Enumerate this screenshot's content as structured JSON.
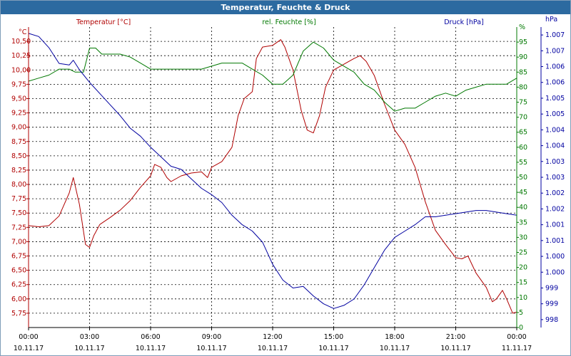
{
  "window": {
    "title": "Temperatur, Feuchte & Druck"
  },
  "colors": {
    "temp": "#b00000",
    "hum": "#007800",
    "press": "#0000a0",
    "grid": "#000000"
  },
  "chart_data": {
    "type": "line",
    "title": "Temperatur, Feuchte & Druck",
    "grid": true,
    "x_ticks": [
      {
        "time": "00:00",
        "date": "10.11.17"
      },
      {
        "time": "03:00",
        "date": "10.11.17"
      },
      {
        "time": "06:00",
        "date": "10.11.17"
      },
      {
        "time": "09:00",
        "date": "10.11.17"
      },
      {
        "time": "12:00",
        "date": "10.11.17"
      },
      {
        "time": "15:00",
        "date": "10.11.17"
      },
      {
        "time": "18:00",
        "date": "10.11.17"
      },
      {
        "time": "21:00",
        "date": "10.11.17"
      },
      {
        "time": "00:00",
        "date": "11.11.17"
      }
    ],
    "xlim_hours": [
      0,
      24
    ],
    "axes": {
      "temp": {
        "unit": "°C",
        "ylim": [
          5.5,
          10.75
        ],
        "ticks": [
          "5,75",
          "6,00",
          "6,25",
          "6,50",
          "6,75",
          "7,00",
          "7,25",
          "7,50",
          "7,75",
          "8,00",
          "8,25",
          "8,50",
          "8,75",
          "9,00",
          "9,25",
          "9,50",
          "9,75",
          "10,00",
          "10,25",
          "10,50"
        ]
      },
      "hum": {
        "unit": "%",
        "ylim": [
          0,
          100
        ],
        "ticks": [
          "0",
          "5",
          "10",
          "15",
          "20",
          "25",
          "30",
          "35",
          "40",
          "45",
          "50",
          "55",
          "60",
          "65",
          "70",
          "75",
          "80",
          "85",
          "90",
          "95",
          "%"
        ]
      },
      "press": {
        "unit": "hPa",
        "ylim": [
          997.75,
          1007.25
        ],
        "ticks": [
          "998",
          "999",
          "999",
          "1.000",
          "1.000",
          "1.001",
          "1.001",
          "1.002",
          "1.002",
          "1.003",
          "1.003",
          "1.004",
          "1.004",
          "1.005",
          "1.005",
          "1.006",
          "1.006",
          "1.007",
          "1.007",
          "hPa"
        ]
      }
    },
    "series": [
      {
        "name": "Temperatur [°C]",
        "axis": "temp",
        "points": [
          [
            0,
            7.28
          ],
          [
            0.5,
            7.26
          ],
          [
            1,
            7.28
          ],
          [
            1.5,
            7.45
          ],
          [
            2,
            7.85
          ],
          [
            2.2,
            8.12
          ],
          [
            2.5,
            7.65
          ],
          [
            2.8,
            6.95
          ],
          [
            3,
            6.9
          ],
          [
            3.2,
            7.1
          ],
          [
            3.5,
            7.3
          ],
          [
            4,
            7.42
          ],
          [
            4.5,
            7.55
          ],
          [
            5,
            7.72
          ],
          [
            5.5,
            7.95
          ],
          [
            6,
            8.15
          ],
          [
            6.2,
            8.35
          ],
          [
            6.5,
            8.3
          ],
          [
            6.8,
            8.12
          ],
          [
            7,
            8.05
          ],
          [
            7.5,
            8.15
          ],
          [
            8,
            8.2
          ],
          [
            8.5,
            8.22
          ],
          [
            8.8,
            8.12
          ],
          [
            9,
            8.3
          ],
          [
            9.5,
            8.4
          ],
          [
            10,
            8.65
          ],
          [
            10.3,
            9.2
          ],
          [
            10.6,
            9.5
          ],
          [
            11,
            9.62
          ],
          [
            11.2,
            10.2
          ],
          [
            11.5,
            10.4
          ],
          [
            12,
            10.43
          ],
          [
            12.4,
            10.53
          ],
          [
            12.6,
            10.4
          ],
          [
            13,
            10.0
          ],
          [
            13.4,
            9.3
          ],
          [
            13.7,
            8.95
          ],
          [
            14,
            8.9
          ],
          [
            14.3,
            9.2
          ],
          [
            14.6,
            9.7
          ],
          [
            15,
            10.0
          ],
          [
            15.5,
            10.1
          ],
          [
            16,
            10.2
          ],
          [
            16.3,
            10.25
          ],
          [
            16.6,
            10.15
          ],
          [
            17,
            9.9
          ],
          [
            17.5,
            9.4
          ],
          [
            18,
            8.95
          ],
          [
            18.5,
            8.7
          ],
          [
            19,
            8.3
          ],
          [
            19.5,
            7.7
          ],
          [
            20,
            7.2
          ],
          [
            20.5,
            6.95
          ],
          [
            21,
            6.72
          ],
          [
            21.3,
            6.7
          ],
          [
            21.6,
            6.75
          ],
          [
            22,
            6.45
          ],
          [
            22.5,
            6.2
          ],
          [
            22.8,
            5.95
          ],
          [
            23,
            6.0
          ],
          [
            23.3,
            6.15
          ],
          [
            23.5,
            6.0
          ],
          [
            23.8,
            5.75
          ],
          [
            24,
            5.77
          ]
        ]
      },
      {
        "name": "rel. Feuchte [%]",
        "axis": "hum",
        "points": [
          [
            0,
            82
          ],
          [
            0.5,
            83
          ],
          [
            1,
            84
          ],
          [
            1.5,
            86
          ],
          [
            2,
            86
          ],
          [
            2.3,
            85
          ],
          [
            2.7,
            85
          ],
          [
            3,
            93
          ],
          [
            3.3,
            93
          ],
          [
            3.6,
            91
          ],
          [
            4,
            91
          ],
          [
            4.5,
            91
          ],
          [
            5,
            90
          ],
          [
            5.5,
            88
          ],
          [
            6,
            86
          ],
          [
            6.5,
            86
          ],
          [
            7,
            86
          ],
          [
            7.5,
            86
          ],
          [
            8,
            86
          ],
          [
            8.5,
            86
          ],
          [
            9,
            87
          ],
          [
            9.5,
            88
          ],
          [
            10,
            88
          ],
          [
            10.5,
            88
          ],
          [
            11,
            86
          ],
          [
            11.5,
            84
          ],
          [
            12,
            81
          ],
          [
            12.5,
            81
          ],
          [
            13,
            84
          ],
          [
            13.5,
            92
          ],
          [
            14,
            95
          ],
          [
            14.5,
            93
          ],
          [
            15,
            89
          ],
          [
            15.5,
            87
          ],
          [
            16,
            85
          ],
          [
            16.5,
            81
          ],
          [
            17,
            79
          ],
          [
            17.5,
            75
          ],
          [
            18,
            72
          ],
          [
            18.5,
            73
          ],
          [
            19,
            73
          ],
          [
            19.5,
            75
          ],
          [
            20,
            77
          ],
          [
            20.5,
            78
          ],
          [
            21,
            77
          ],
          [
            21.5,
            79
          ],
          [
            22,
            80
          ],
          [
            22.5,
            81
          ],
          [
            23,
            81
          ],
          [
            23.5,
            81
          ],
          [
            24,
            83
          ]
        ]
      },
      {
        "name": "Druck [hPa]",
        "axis": "press",
        "points": [
          [
            0,
            1007.05
          ],
          [
            0.5,
            1006.95
          ],
          [
            1,
            1006.6
          ],
          [
            1.5,
            1006.1
          ],
          [
            2,
            1006.05
          ],
          [
            2.2,
            1006.2
          ],
          [
            2.5,
            1005.9
          ],
          [
            3,
            1005.5
          ],
          [
            3.5,
            1005.15
          ],
          [
            4,
            1004.8
          ],
          [
            4.5,
            1004.45
          ],
          [
            5,
            1004.05
          ],
          [
            5.5,
            1003.8
          ],
          [
            6,
            1003.45
          ],
          [
            6.5,
            1003.15
          ],
          [
            7,
            1002.85
          ],
          [
            7.5,
            1002.75
          ],
          [
            8,
            1002.45
          ],
          [
            8.5,
            1002.15
          ],
          [
            9,
            1001.95
          ],
          [
            9.5,
            1001.7
          ],
          [
            10,
            1001.3
          ],
          [
            10.5,
            1001.0
          ],
          [
            11,
            1000.8
          ],
          [
            11.5,
            1000.45
          ],
          [
            12,
            999.75
          ],
          [
            12.5,
            999.25
          ],
          [
            13,
            999.0
          ],
          [
            13.5,
            999.05
          ],
          [
            14,
            998.75
          ],
          [
            14.5,
            998.5
          ],
          [
            15,
            998.35
          ],
          [
            15.5,
            998.45
          ],
          [
            16,
            998.65
          ],
          [
            16.5,
            999.1
          ],
          [
            17,
            999.65
          ],
          [
            17.5,
            1000.2
          ],
          [
            18,
            1000.6
          ],
          [
            18.5,
            1000.8
          ],
          [
            19,
            1001.0
          ],
          [
            19.5,
            1001.25
          ],
          [
            20,
            1001.25
          ],
          [
            20.5,
            1001.3
          ],
          [
            21,
            1001.35
          ],
          [
            21.5,
            1001.4
          ],
          [
            22,
            1001.45
          ],
          [
            22.5,
            1001.45
          ],
          [
            23,
            1001.4
          ],
          [
            23.5,
            1001.35
          ],
          [
            24,
            1001.3
          ]
        ]
      }
    ]
  }
}
